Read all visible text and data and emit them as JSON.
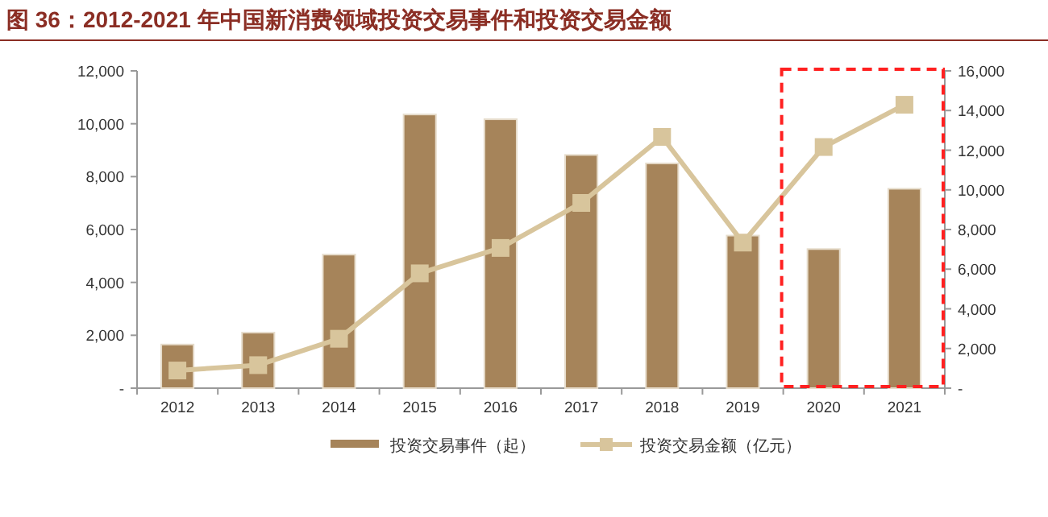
{
  "chart_data": {
    "type": "bar",
    "title": "图 36：2012-2021 年中国新消费领域投资交易事件和投资交易金额",
    "categories": [
      "2012",
      "2013",
      "2014",
      "2015",
      "2016",
      "2017",
      "2018",
      "2019",
      "2020",
      "2021"
    ],
    "series": [
      {
        "name": "投资交易事件（起）",
        "color": "#a6845a",
        "values": [
          1650,
          2100,
          5050,
          10350,
          10170,
          8820,
          8500,
          5770,
          5260,
          7540
        ]
      },
      {
        "name": "投资交易金额（亿元）",
        "type": "line",
        "axis": "y2",
        "color": "#d8c59c",
        "marker": "square",
        "values": [
          890,
          1160,
          2490,
          5790,
          7070,
          9340,
          12670,
          7340,
          12160,
          14290
        ]
      }
    ],
    "ylim": [
      0,
      12000
    ],
    "yticks": [
      {
        "value": 0,
        "label": "-"
      },
      {
        "value": 2000,
        "label": "2,000"
      },
      {
        "value": 4000,
        "label": "4,000"
      },
      {
        "value": 6000,
        "label": "6,000"
      },
      {
        "value": 8000,
        "label": "8,000"
      },
      {
        "value": 10000,
        "label": "10,000"
      },
      {
        "value": 12000,
        "label": "12,000"
      }
    ],
    "y2lim": [
      0,
      16000
    ],
    "y2ticks": [
      {
        "value": 0,
        "label": "-"
      },
      {
        "value": 2000,
        "label": "2,000"
      },
      {
        "value": 4000,
        "label": "4,000"
      },
      {
        "value": 6000,
        "label": "6,000"
      },
      {
        "value": 8000,
        "label": "8,000"
      },
      {
        "value": 10000,
        "label": "10,000"
      },
      {
        "value": 12000,
        "label": "12,000"
      },
      {
        "value": 14000,
        "label": "14,000"
      },
      {
        "value": 16000,
        "label": "16,000"
      }
    ],
    "grid": false,
    "legend": "bottom"
  }
}
